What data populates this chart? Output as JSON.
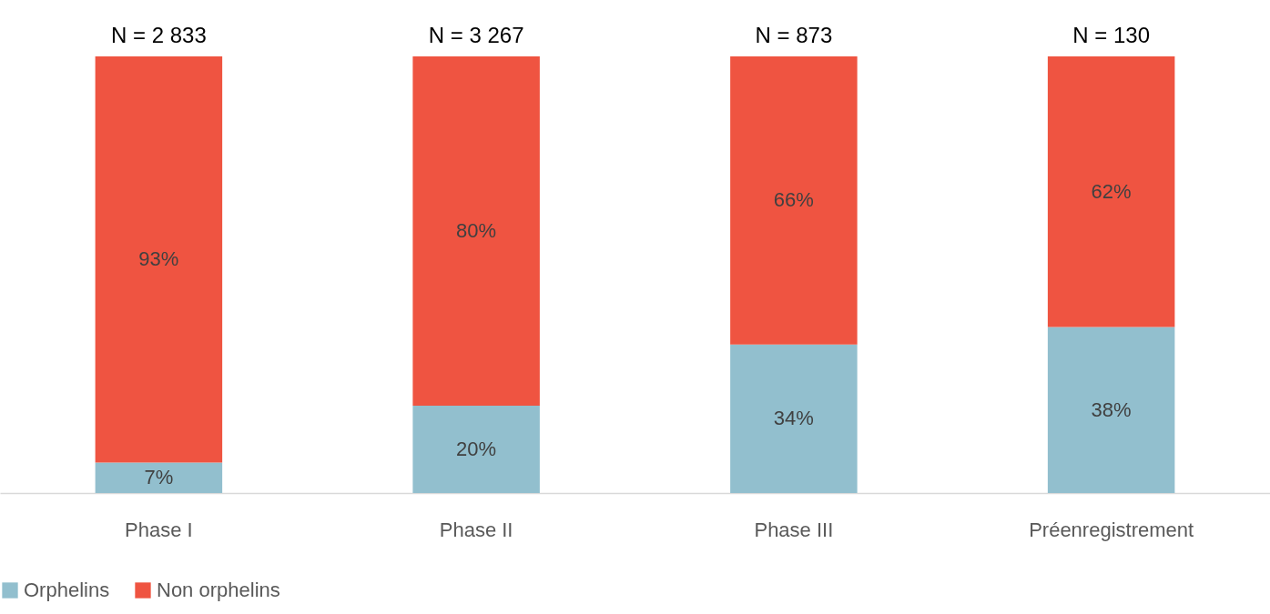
{
  "chart_data": {
    "type": "bar",
    "stacked": true,
    "categories": [
      "Phase I",
      "Phase II",
      "Phase III",
      "Préenregistrement"
    ],
    "series": [
      {
        "name": "Orphelins",
        "color": "#92bfce",
        "values": [
          7,
          20,
          34,
          38
        ],
        "value_labels": [
          "7%",
          "20%",
          "34%",
          "38%"
        ]
      },
      {
        "name": "Non orphelins",
        "color": "#ef5441",
        "values": [
          93,
          80,
          66,
          62
        ],
        "value_labels": [
          "93%",
          "80%",
          "66%",
          "62%"
        ]
      }
    ],
    "annotations": [
      {
        "text": "N = 2 833",
        "x": "Phase I",
        "y": 100
      },
      {
        "text": "N = 3 267",
        "x": "Phase II",
        "y": 100
      },
      {
        "text": "N = 873",
        "x": "Phase III",
        "y": 100
      },
      {
        "text": "N = 130",
        "x": "Préenregistrement",
        "y": 100
      }
    ],
    "legend": "bottom"
  }
}
